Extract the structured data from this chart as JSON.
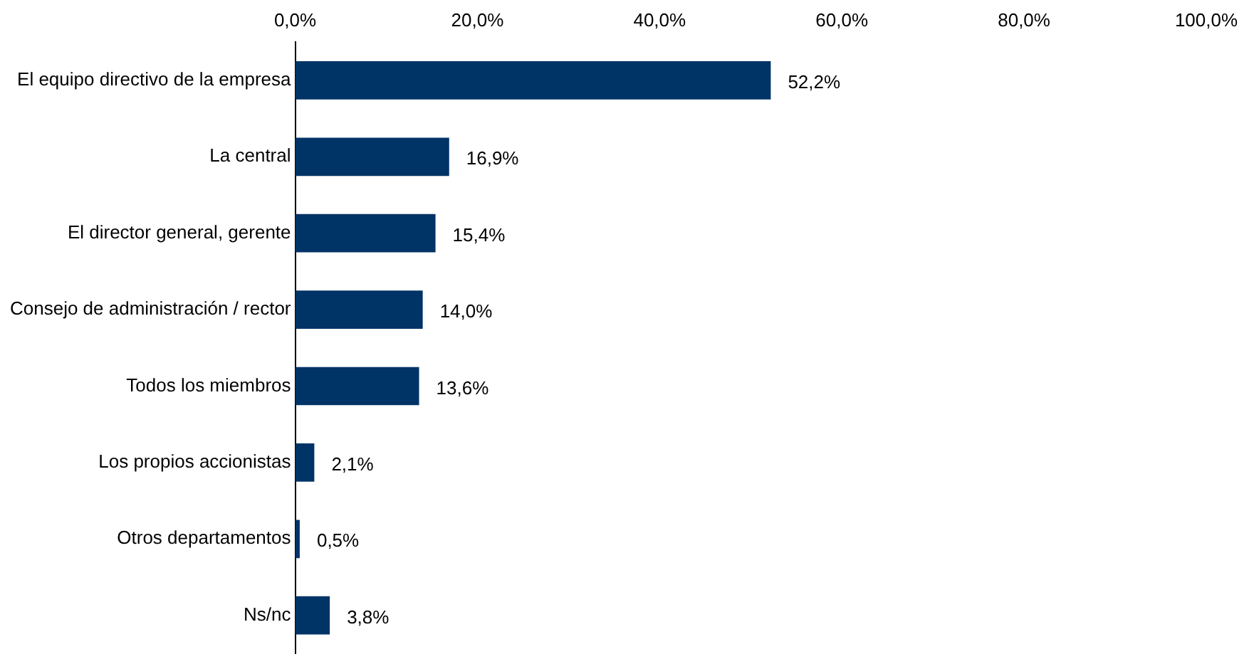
{
  "chart_data": {
    "type": "bar",
    "orientation": "horizontal",
    "categories": [
      "El equipo directivo de la empresa",
      "La central",
      "El director general, gerente",
      "Consejo de administración / rector",
      "Todos los miembros",
      "Los propios accionistas",
      "Otros departamentos",
      "Ns/nc"
    ],
    "values": [
      52.2,
      16.9,
      15.4,
      14.0,
      13.6,
      2.1,
      0.5,
      3.8
    ],
    "value_labels": [
      "52,2%",
      "16,9%",
      "15,4%",
      "14,0%",
      "13,6%",
      "2,1%",
      "0,5%",
      "3,8%"
    ],
    "color": "#003366",
    "xlim": [
      0,
      100
    ],
    "xticks": [
      {
        "value": 0,
        "label": "0,0%"
      },
      {
        "value": 20,
        "label": "20,0%"
      },
      {
        "value": 40,
        "label": "40,0%"
      },
      {
        "value": 60,
        "label": "60,0%"
      },
      {
        "value": 80,
        "label": "80,0%"
      },
      {
        "value": 100,
        "label": "100,0%"
      }
    ],
    "grid": false,
    "legend": false
  }
}
